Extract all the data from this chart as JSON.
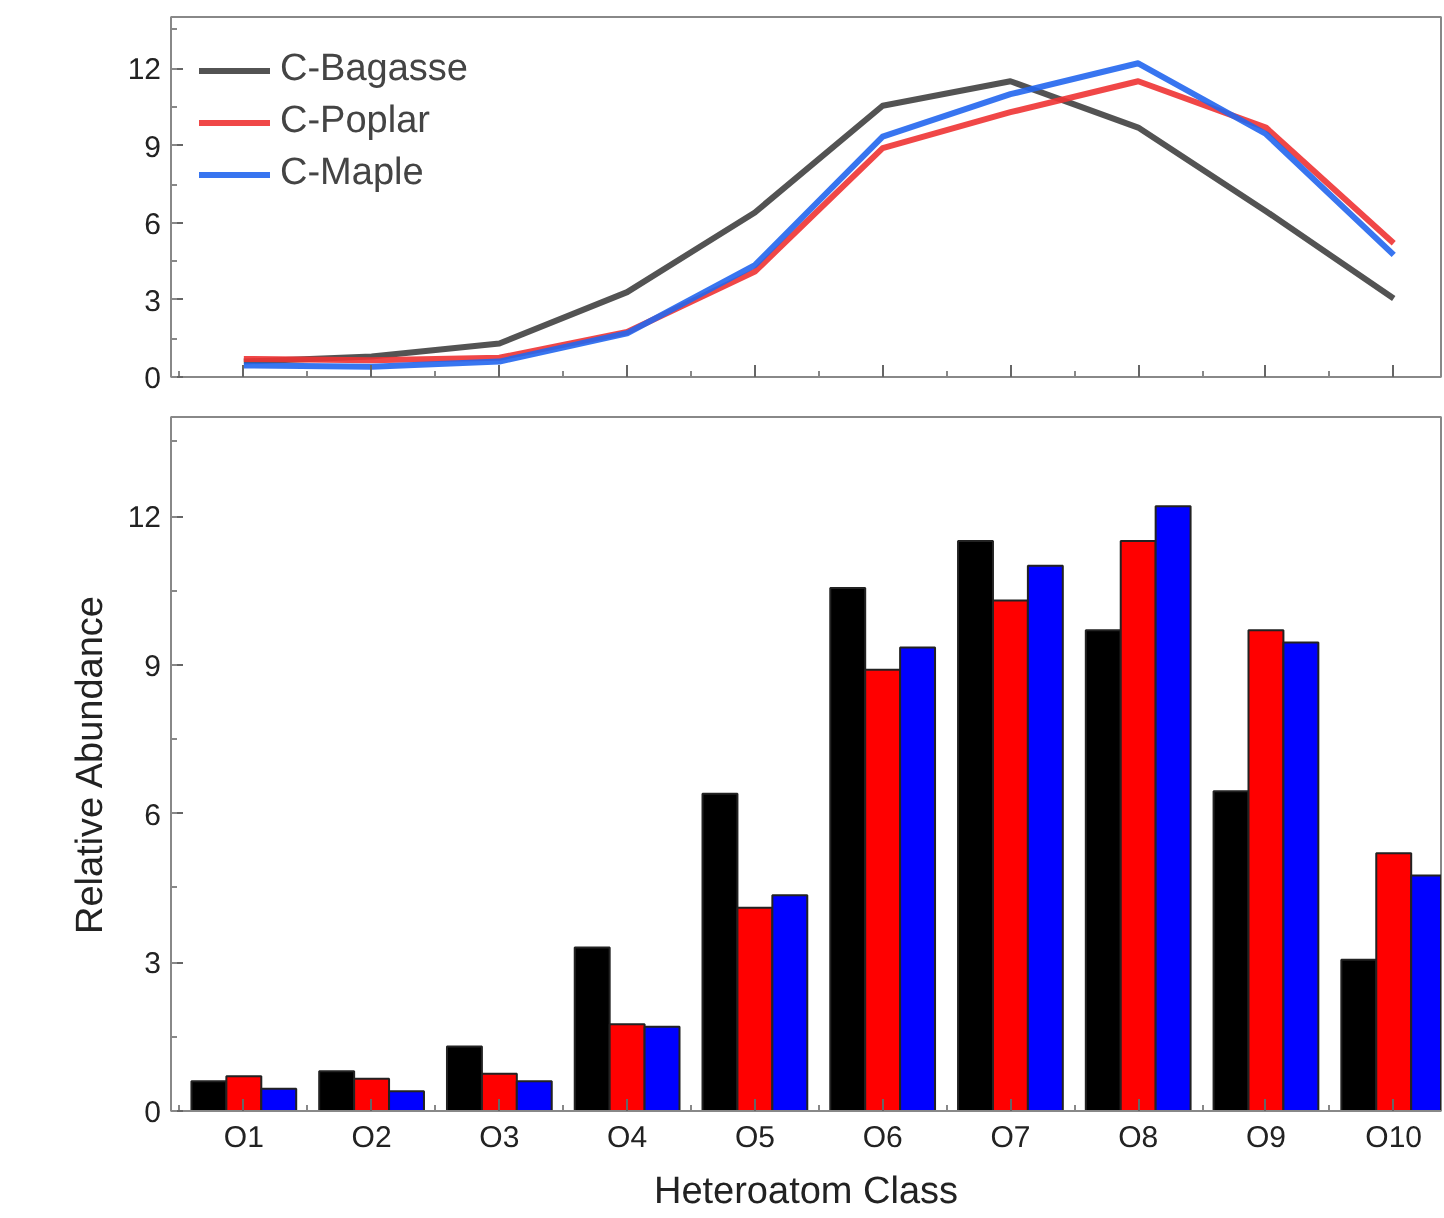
{
  "chart_data": [
    {
      "type": "line",
      "categories": [
        null,
        null,
        null,
        null,
        null,
        null,
        null,
        null,
        null,
        null
      ],
      "ylim": [
        0,
        14
      ],
      "yticks": [
        0,
        3,
        6,
        9,
        12
      ],
      "tick_labels": "y",
      "legend": "top left",
      "series": [
        {
          "name": "C-Bagasse",
          "color": "#404040",
          "values": [
            0.6,
            0.8,
            1.3,
            3.3,
            6.4,
            10.55,
            11.5,
            9.7,
            6.45,
            3.05
          ]
        },
        {
          "name": "C-Poplar",
          "color": "#ee3333",
          "values": [
            0.7,
            0.65,
            0.75,
            1.75,
            4.1,
            8.9,
            10.3,
            11.5,
            9.7,
            5.2
          ]
        },
        {
          "name": "C-Maple",
          "color": "#2266ee",
          "values": [
            0.45,
            0.4,
            0.6,
            1.7,
            4.35,
            9.35,
            11.0,
            12.2,
            9.45,
            4.75
          ]
        }
      ]
    },
    {
      "type": "bar",
      "categories": [
        "O1",
        "O2",
        "O3",
        "O4",
        "O5",
        "O6",
        "O7",
        "O8",
        "O9",
        "O10"
      ],
      "ylim": [
        0,
        14
      ],
      "yticks": [
        0,
        3,
        6,
        9,
        12
      ],
      "xlabel": "Heteroatom Class",
      "ylabel": "Relative Abundance",
      "series": [
        {
          "color": "#000000",
          "values": [
            0.6,
            0.8,
            1.3,
            3.3,
            6.4,
            10.55,
            11.5,
            9.7,
            6.45,
            3.05
          ]
        },
        {
          "color": "#ff0000",
          "values": [
            0.7,
            0.65,
            0.75,
            1.75,
            4.1,
            8.9,
            10.3,
            11.5,
            9.7,
            5.2
          ]
        },
        {
          "color": "#0000ff",
          "values": [
            0.45,
            0.4,
            0.6,
            1.7,
            4.35,
            9.35,
            11.0,
            12.2,
            9.45,
            4.75
          ]
        }
      ]
    }
  ]
}
